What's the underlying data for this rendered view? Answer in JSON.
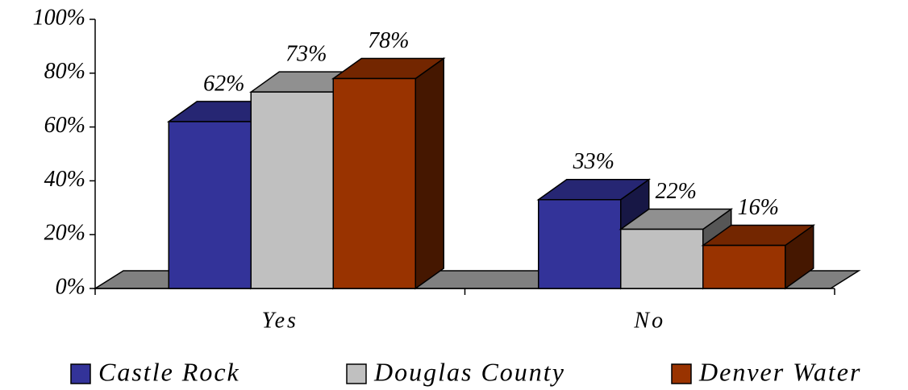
{
  "chart_data": {
    "type": "bar3d",
    "categories": [
      "Yes",
      "No"
    ],
    "series": [
      {
        "name": "Castle Rock",
        "color": "#333399",
        "values": [
          62,
          33
        ],
        "value_labels": [
          "62%",
          "33%"
        ]
      },
      {
        "name": "Douglas County",
        "color": "#c0c0c0",
        "values": [
          73,
          22
        ],
        "value_labels": [
          "73%",
          "22%"
        ]
      },
      {
        "name": "Denver Water",
        "color": "#993300",
        "values": [
          78,
          16
        ],
        "value_labels": [
          "78%",
          "16%"
        ]
      }
    ],
    "ylim": [
      0,
      100
    ],
    "yticks": [
      {
        "value": 0,
        "label": "0%"
      },
      {
        "value": 20,
        "label": "20%"
      },
      {
        "value": 40,
        "label": "40%"
      },
      {
        "value": 60,
        "label": "60%"
      },
      {
        "value": 80,
        "label": "80%"
      },
      {
        "value": 100,
        "label": "100%"
      }
    ],
    "legend": "bottom"
  }
}
